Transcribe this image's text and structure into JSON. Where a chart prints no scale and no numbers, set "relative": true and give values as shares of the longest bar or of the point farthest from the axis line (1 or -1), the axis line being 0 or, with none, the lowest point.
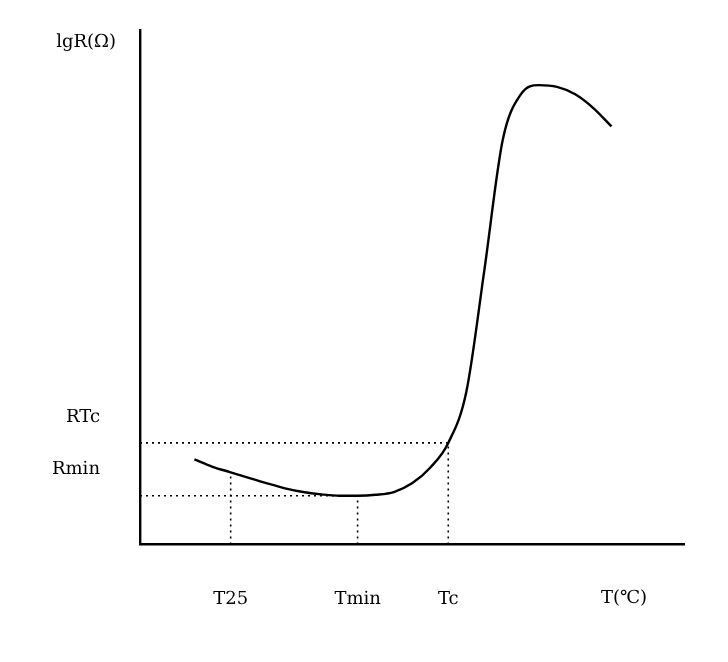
{
  "chart_data": {
    "type": "line",
    "relative": true,
    "xlabel": "T(℃)",
    "ylabel": "lgR(Ω)",
    "categories": [
      null,
      null,
      null,
      null,
      null,
      "T25",
      null,
      null,
      null,
      null,
      null,
      null,
      "Tmin",
      null,
      null,
      null,
      null,
      "Tc",
      null,
      null,
      null,
      null,
      null,
      null,
      null,
      null,
      null,
      null,
      null,
      null,
      null
    ],
    "series": [
      {
        "color": "#000000",
        "values": [
          null,
          null,
          null,
          0.185,
          0.169,
          0.157,
          0.145,
          0.133,
          0.122,
          0.114,
          0.109,
          0.106,
          0.106,
          0.108,
          0.114,
          0.133,
          0.167,
          0.221,
          0.333,
          0.6,
          0.88,
          0.98,
          1.0,
          0.996,
          0.98,
          0.95,
          0.91,
          null,
          null,
          null,
          null
        ]
      }
    ],
    "ref_lines": [
      {
        "axis": "x",
        "value": "T25",
        "line_style": "dotted",
        "color": "#000000"
      },
      {
        "axis": "x",
        "value": "Tmin",
        "line_style": "dotted",
        "color": "#000000"
      },
      {
        "axis": "x",
        "value": "Tc",
        "line_style": "dotted",
        "color": "#000000"
      },
      {
        "axis": "y",
        "value": 0.221,
        "label": "RTc",
        "line_style": "dotted",
        "color": "#000000"
      },
      {
        "axis": "y",
        "value": 0.106,
        "label": "Rmin",
        "line_style": "dotted",
        "color": "#000000"
      }
    ],
    "grid": false,
    "legend": false,
    "marker": "none",
    "line_style": "solid"
  }
}
